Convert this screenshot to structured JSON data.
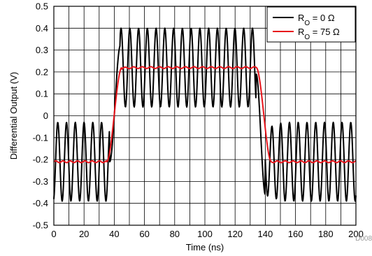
{
  "figure_id": "D008",
  "chart_data": {
    "type": "line",
    "title": "",
    "xlabel": "Time (ns)",
    "ylabel": "Differential Output (V)",
    "xlim": [
      0,
      200
    ],
    "ylim": [
      -0.5,
      0.5
    ],
    "x_ticks": [
      0,
      20,
      40,
      60,
      80,
      100,
      120,
      140,
      160,
      180,
      200
    ],
    "y_ticks": [
      -0.5,
      -0.4,
      -0.3,
      -0.2,
      -0.1,
      0,
      0.1,
      0.2,
      0.3,
      0.4,
      0.5
    ],
    "y_tick_labels": [
      "-0.5",
      "-0.4",
      "-0.3",
      "-0.2",
      "-0.1",
      "0",
      "0.1",
      "0.2",
      "0.3",
      "0.4",
      "0.5"
    ],
    "grid": true,
    "legend_position": "top-right",
    "series": [
      {
        "name": "R",
        "name_subscript": "O",
        "name_suffix": " = 0 Ω",
        "color": "#000000",
        "description": "ringing pulse",
        "low_level": -0.21,
        "high_level": 0.22,
        "low_ring_amplitude": 0.18,
        "high_ring_amplitude": 0.18,
        "ring_period_ns": 5.8,
        "rise_start_ns": 37,
        "rise_end_ns": 44,
        "fall_start_ns": 134,
        "fall_end_ns": 140
      },
      {
        "name": "R",
        "name_subscript": "O",
        "name_suffix": " = 75 Ω",
        "color": "#e8141b",
        "description": "damped pulse",
        "low_level": -0.21,
        "high_level": 0.22,
        "ripple_amplitude": 0.004,
        "rise_start_ns": 35,
        "rise_end_ns": 45,
        "fall_start_ns": 134,
        "fall_end_ns": 144
      }
    ]
  }
}
